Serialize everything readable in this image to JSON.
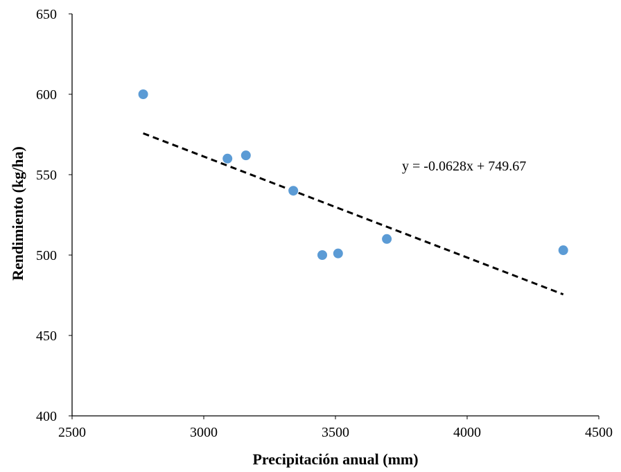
{
  "chart_data": {
    "type": "scatter",
    "title": "",
    "xlabel": "Precipitación anual (mm)",
    "ylabel": "Rendimiento (kg/ha)",
    "xlim": [
      2500,
      4500
    ],
    "ylim": [
      400,
      650
    ],
    "x_ticks": [
      2500,
      3000,
      3500,
      4000,
      4500
    ],
    "y_ticks": [
      400,
      450,
      500,
      550,
      600,
      650
    ],
    "grid": false,
    "legend": "none",
    "series": [
      {
        "color": "#5B9BD5",
        "points": [
          {
            "x": 2770,
            "y": 600
          },
          {
            "x": 3090,
            "y": 560
          },
          {
            "x": 3160,
            "y": 562
          },
          {
            "x": 3340,
            "y": 540
          },
          {
            "x": 3450,
            "y": 500
          },
          {
            "x": 3510,
            "y": 501
          },
          {
            "x": 3695,
            "y": 510
          },
          {
            "x": 4365,
            "y": 503
          }
        ]
      }
    ],
    "trendline": {
      "slope": -0.0628,
      "intercept": 749.67,
      "x_range": [
        2770,
        4365
      ],
      "style": "dashed",
      "color": "#000000",
      "equation_label": "y = -0.0628x + 749.67"
    }
  }
}
